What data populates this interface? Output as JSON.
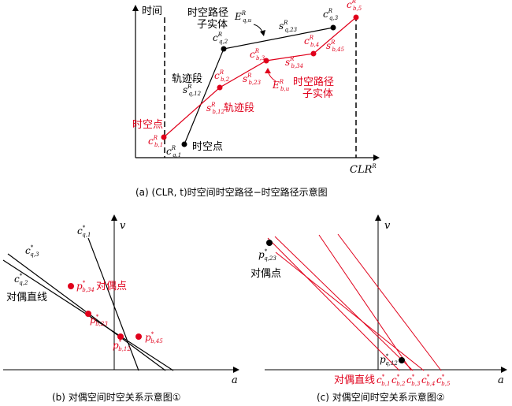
{
  "colors": {
    "black": "#000000",
    "red": "#e0001b"
  },
  "panel_a": {
    "ylabel": "时间",
    "xlabel": "CLR",
    "xlabel_sup": "R",
    "caption": "(a) (CLR, t)时空间时空路径−时空路径示意图",
    "q_path_label": {
      "line1": "时空路径",
      "line2": "子实体",
      "sym": "E",
      "sup": "R",
      "sub": "q,u"
    },
    "b_path_label": {
      "line1": "时空路径",
      "line2": "子实体",
      "sym": "E",
      "sup": "R",
      "sub": "b,u"
    },
    "q_points": [
      {
        "sym": "c",
        "sup": "R",
        "sub": "q,1"
      },
      {
        "sym": "c",
        "sup": "R",
        "sub": "q,2"
      },
      {
        "sym": "c",
        "sup": "R",
        "sub": "q,3"
      }
    ],
    "b_points": [
      {
        "sym": "c",
        "sup": "R",
        "sub": "b,1"
      },
      {
        "sym": "c",
        "sup": "R",
        "sub": "b,2"
      },
      {
        "sym": "c",
        "sup": "R",
        "sub": "b,3"
      },
      {
        "sym": "c",
        "sup": "R",
        "sub": "b,4"
      },
      {
        "sym": "c",
        "sup": "R",
        "sub": "b,5"
      }
    ],
    "q_segments": [
      {
        "sym": "s",
        "sup": "R",
        "sub": "q,12"
      },
      {
        "sym": "s",
        "sup": "R",
        "sub": "q,23"
      }
    ],
    "b_segments": [
      {
        "sym": "s",
        "sup": "R",
        "sub": "b,12"
      },
      {
        "sym": "s",
        "sup": "R",
        "sub": "b,23"
      },
      {
        "sym": "s",
        "sup": "R",
        "sub": "b,34"
      },
      {
        "sym": "s",
        "sup": "R",
        "sub": "b,45"
      }
    ],
    "label_traj_black": "轨迹段",
    "label_traj_red": "轨迹段",
    "label_point_red": "时空点",
    "label_point_black": "时空点"
  },
  "panel_b": {
    "ylabel": "v",
    "xlabel": "a",
    "caption": "(b) 对偶空间时空关系示意图①",
    "lines": [
      {
        "sym": "c",
        "sup": "*",
        "sub": "q,1"
      },
      {
        "sym": "c",
        "sup": "*",
        "sub": "q,3"
      },
      {
        "sym": "c",
        "sup": "*",
        "sub": "q,2"
      }
    ],
    "points": [
      {
        "sym": "p",
        "sup": "*",
        "sub": "b,34"
      },
      {
        "sym": "p",
        "sup": "*",
        "sub": "b,23"
      },
      {
        "sym": "p",
        "sup": "*",
        "sub": "b,12"
      },
      {
        "sym": "p",
        "sup": "*",
        "sub": "b,45"
      }
    ],
    "label_dual_line": "对偶直线",
    "label_dual_point": "对偶点"
  },
  "panel_c": {
    "ylabel": "v",
    "xlabel": "a",
    "caption": "(c) 对偶空间时空关系示意图②",
    "points": [
      {
        "sym": "p",
        "sup": "*",
        "sub": "q,23"
      },
      {
        "sym": "p",
        "sup": "*",
        "sub": "q,12"
      }
    ],
    "lines": [
      {
        "sym": "c",
        "sup": "*",
        "sub": "b,1"
      },
      {
        "sym": "c",
        "sup": "*",
        "sub": "b,2"
      },
      {
        "sym": "c",
        "sup": "*",
        "sub": "b,3"
      },
      {
        "sym": "c",
        "sup": "*",
        "sub": "b,4"
      },
      {
        "sym": "c",
        "sup": "*",
        "sub": "b,5"
      }
    ],
    "label_dual_point": "对偶点",
    "label_dual_line": "对偶直线"
  }
}
